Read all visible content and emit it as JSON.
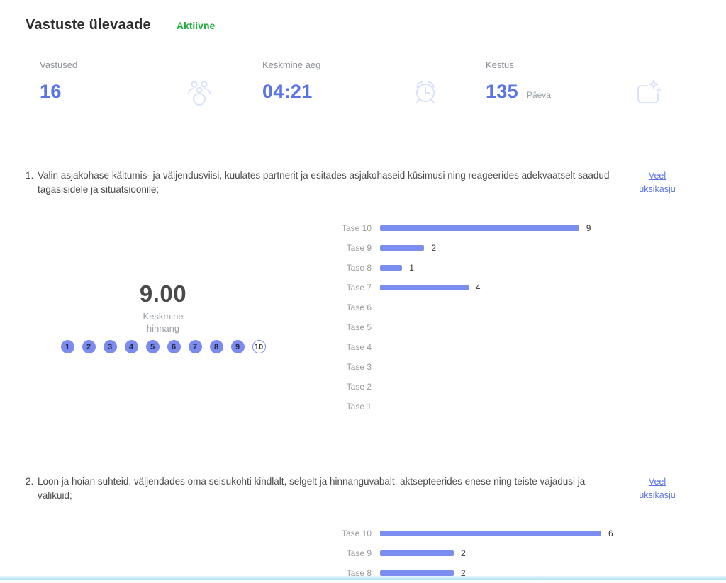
{
  "header": {
    "title": "Vastuste ülevaade",
    "status": "Aktiivne"
  },
  "stats": [
    {
      "label": "Vastused",
      "value": "16",
      "unit": "",
      "icon": "people-icon"
    },
    {
      "label": "Keskmine aeg",
      "value": "04:21",
      "unit": "",
      "icon": "alarm-clock-icon"
    },
    {
      "label": "Kestus",
      "value": "135",
      "unit": "Päeva",
      "icon": "calendar-sparkle-icon"
    }
  ],
  "questions": [
    {
      "number": "1.",
      "text": "Valin asjakohase käitumis- ja väljendusviisi, kuulates partnerit ja esitades asjakohaseid küsimusi ning reageerides adekvaatselt saadud tagasisidele ja situatsioonile;",
      "link": "Veel üksikasju",
      "average": "9.00",
      "average_label": "Keskmine hinnang",
      "scale": [
        1,
        2,
        3,
        4,
        5,
        6,
        7,
        8,
        9,
        10
      ],
      "filled_upto": 9
    },
    {
      "number": "2.",
      "text": "Loon ja hoian suhteid, väljendades oma seisukohti kindlalt, selgelt ja hinnanguvabalt, aktsepteerides enese ning teiste vajadusi ja valikuid;",
      "link": "Veel üksikasju"
    }
  ],
  "chart_data": [
    {
      "type": "bar",
      "orientation": "horizontal",
      "title": "Question 1 rating distribution",
      "categories": [
        "Tase 10",
        "Tase 9",
        "Tase 8",
        "Tase 7",
        "Tase 6",
        "Tase 5",
        "Tase 4",
        "Tase 3",
        "Tase 2",
        "Tase 1"
      ],
      "values": [
        9,
        2,
        1,
        4,
        0,
        0,
        0,
        0,
        0,
        0
      ],
      "axis_max": 10,
      "average": 9.0,
      "grid": false,
      "value_labels": true
    },
    {
      "type": "bar",
      "orientation": "horizontal",
      "title": "Question 2 rating distribution",
      "categories": [
        "Tase 10",
        "Tase 9",
        "Tase 8"
      ],
      "values": [
        6,
        2,
        2
      ],
      "axis_max": 6,
      "grid": false,
      "value_labels": true
    }
  ],
  "colors": {
    "accent_blue": "#5b73e8",
    "bar_blue": "#7b8ef0",
    "status_green": "#21ac3f",
    "icon_tint": "#dbe3fa",
    "bottom_edge_cyan": "#a9e1f3"
  }
}
